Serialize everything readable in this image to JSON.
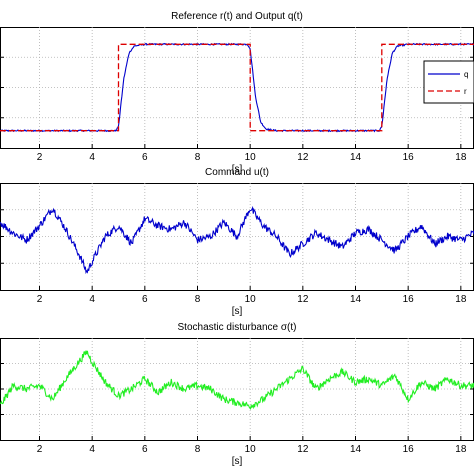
{
  "chart_data": [
    {
      "type": "line",
      "title": "Reference r(t) and Output q(t)",
      "xlabel": "[s]",
      "ylabel": "",
      "xlim": [
        0.5,
        18.5
      ],
      "xticks": [
        2,
        4,
        6,
        8,
        10,
        12,
        14,
        16,
        18
      ],
      "ylim": [
        -0.2,
        1.2
      ],
      "grid": true,
      "legend": {
        "placement": "right",
        "entries": [
          "q",
          "r"
        ]
      },
      "series": [
        {
          "name": "q",
          "color": "#0000cc",
          "style": "solid",
          "x": [
            0.5,
            4.9,
            5.0,
            5.2,
            5.4,
            5.6,
            6.0,
            9.9,
            10.0,
            10.2,
            10.4,
            10.6,
            11.0,
            14.9,
            15.0,
            15.2,
            15.4,
            15.6,
            16.0,
            18.5
          ],
          "y": [
            0,
            0,
            0.05,
            0.6,
            0.9,
            0.98,
            1,
            1,
            0.95,
            0.4,
            0.1,
            0.02,
            0,
            0,
            0.05,
            0.6,
            0.9,
            0.98,
            1,
            1
          ]
        },
        {
          "name": "r",
          "color": "#dd0000",
          "style": "dashed",
          "x": [
            0.5,
            5.0,
            5.0,
            10.0,
            10.0,
            15.0,
            15.0,
            18.5
          ],
          "y": [
            0,
            0,
            1,
            1,
            0,
            0,
            1,
            1
          ]
        }
      ]
    },
    {
      "type": "line",
      "title": "Command u(t)",
      "xlabel": "[s]",
      "ylabel": "",
      "xlim": [
        0.5,
        18.5
      ],
      "xticks": [
        2,
        4,
        6,
        8,
        10,
        12,
        14,
        16,
        18
      ],
      "ylim": [
        -1.5,
        1.5
      ],
      "grid": true,
      "series": [
        {
          "name": "",
          "color": "#0000cc",
          "x": [
            0.5,
            1.0,
            1.5,
            2.0,
            2.5,
            3.0,
            3.5,
            3.8,
            4.0,
            4.5,
            5.0,
            5.5,
            6.0,
            6.5,
            7.0,
            7.5,
            8.0,
            8.5,
            9.0,
            9.5,
            10.0,
            10.5,
            11.0,
            11.5,
            12.0,
            12.5,
            13.0,
            13.5,
            14.0,
            14.5,
            15.0,
            15.5,
            16.0,
            16.5,
            17.0,
            17.5,
            18.0,
            18.5
          ],
          "y": [
            0.4,
            0.1,
            -0.1,
            0.3,
            0.8,
            0.2,
            -0.5,
            -1.0,
            -0.7,
            0.0,
            0.3,
            -0.2,
            0.5,
            0.3,
            0.2,
            0.4,
            -0.1,
            0.0,
            0.4,
            0.0,
            0.8,
            0.3,
            0.0,
            -0.5,
            -0.2,
            0.1,
            -0.1,
            -0.3,
            0.1,
            0.2,
            -0.1,
            -0.4,
            0.0,
            0.3,
            -0.2,
            0.0,
            -0.1,
            0.1
          ]
        }
      ]
    },
    {
      "type": "line",
      "title": "Stochastic disturbance σ(t)",
      "xlabel": "[s]",
      "ylabel": "",
      "xlim": [
        0.5,
        18.5
      ],
      "xticks": [
        2,
        4,
        6,
        8,
        10,
        12,
        14,
        16,
        18
      ],
      "ylim": [
        -1.5,
        1.5
      ],
      "grid": true,
      "series": [
        {
          "name": "",
          "color": "#22ee22",
          "x": [
            0.5,
            1.0,
            1.5,
            2.0,
            2.5,
            3.0,
            3.5,
            3.8,
            4.0,
            4.5,
            5.0,
            5.5,
            6.0,
            6.5,
            7.0,
            7.5,
            8.0,
            8.5,
            9.0,
            9.5,
            10.0,
            10.5,
            11.0,
            11.5,
            12.0,
            12.5,
            13.0,
            13.5,
            14.0,
            14.5,
            15.0,
            15.5,
            16.0,
            16.5,
            17.0,
            17.5,
            18.0,
            18.5
          ],
          "y": [
            -0.5,
            0.1,
            0.0,
            0.1,
            -0.3,
            0.3,
            0.8,
            1.1,
            0.8,
            0.2,
            -0.2,
            0.0,
            0.3,
            -0.1,
            0.2,
            0.0,
            0.1,
            0.0,
            -0.3,
            -0.4,
            -0.5,
            -0.3,
            0.0,
            0.3,
            0.6,
            0.0,
            0.3,
            0.5,
            0.2,
            0.3,
            0.1,
            0.4,
            -0.3,
            0.2,
            0.0,
            0.3,
            0.1,
            0.1
          ]
        }
      ]
    }
  ]
}
